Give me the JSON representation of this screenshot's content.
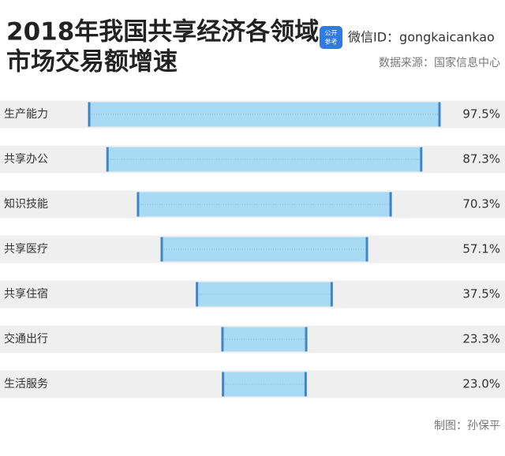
{
  "chart_data": {
    "type": "bar",
    "title": [
      "2018年我国共享经济各领域",
      "市场交易额增速"
    ],
    "logo": [
      "公开",
      "参考"
    ],
    "wechat": "微信ID：gongkaicankao",
    "source": "数据来源：国家信息中心",
    "credit": "制图：孙保平",
    "categories": [
      "生产能力",
      "共享办公",
      "知识技能",
      "共享医疗",
      "共享住宿",
      "交通出行",
      "生活服务"
    ],
    "values": [
      97.5,
      87.3,
      70.3,
      57.1,
      37.5,
      23.3,
      23.0
    ],
    "value_labels": [
      "97.5%",
      "87.3%",
      "70.3%",
      "57.1%",
      "37.5%",
      "23.3%",
      "23.0%"
    ],
    "color": "#a9daf3",
    "edge_color": "#3f86c6"
  }
}
